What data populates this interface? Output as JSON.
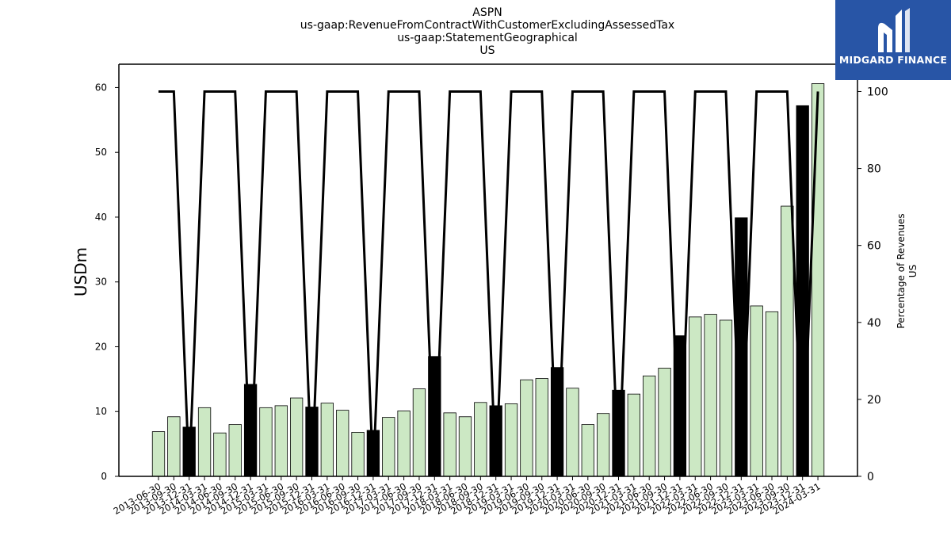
{
  "brand": {
    "name": "MIDGARD FINANCE",
    "color": "#2855a6"
  },
  "chart_data": {
    "type": "bar",
    "title_lines": [
      "ASPN",
      "us-gaap:RevenueFromContractWithCustomerExcludingAssessedTax",
      "us-gaap:StatementGeographical",
      "US"
    ],
    "ylabel": "USDm",
    "ylabel_right": [
      "Percentage of Revenues",
      "US"
    ],
    "ylim": [
      0,
      63.6
    ],
    "ylim_right": [
      0,
      107.1
    ],
    "yticks": [
      0,
      10,
      20,
      30,
      40,
      50,
      60
    ],
    "yticks_right": [
      0,
      20,
      40,
      60,
      80,
      100
    ],
    "categories": [
      "2013-06-30",
      "2013-09-30",
      "2013-12-31",
      "2014-03-31",
      "2014-06-30",
      "2014-09-30",
      "2014-12-31",
      "2015-03-31",
      "2015-06-30",
      "2015-09-30",
      "2015-12-31",
      "2016-03-31",
      "2016-06-30",
      "2016-09-30",
      "2016-12-31",
      "2017-03-31",
      "2017-06-30",
      "2017-09-30",
      "2017-12-31",
      "2018-03-31",
      "2018-06-30",
      "2018-09-30",
      "2018-12-31",
      "2019-03-31",
      "2019-06-30",
      "2019-09-30",
      "2019-12-31",
      "2020-03-31",
      "2020-06-30",
      "2020-09-30",
      "2020-12-31",
      "2021-03-31",
      "2021-06-30",
      "2021-09-30",
      "2021-12-31",
      "2022-03-31",
      "2022-06-30",
      "2022-09-30",
      "2022-12-31",
      "2023-03-31",
      "2023-06-30",
      "2023-09-30",
      "2023-12-31",
      "2024-03-31"
    ],
    "series": [
      {
        "kind": "bar",
        "values": [
          6.9,
          9.2,
          7.6,
          10.6,
          6.7,
          8.0,
          14.2,
          10.6,
          10.9,
          12.1,
          10.7,
          11.3,
          10.2,
          6.8,
          7.1,
          9.1,
          10.1,
          13.5,
          18.5,
          9.8,
          9.2,
          11.4,
          10.9,
          11.2,
          14.9,
          15.1,
          16.8,
          13.6,
          8.0,
          9.7,
          13.3,
          12.7,
          15.5,
          16.7,
          21.7,
          24.6,
          25.0,
          24.1,
          39.9,
          26.3,
          25.4,
          41.7,
          57.2,
          60.6
        ],
        "colors": [
          "#cce8c4",
          "#cce8c4",
          "#000000",
          "#cce8c4",
          "#cce8c4",
          "#cce8c4",
          "#000000",
          "#cce8c4",
          "#cce8c4",
          "#cce8c4",
          "#000000",
          "#cce8c4",
          "#cce8c4",
          "#cce8c4",
          "#000000",
          "#cce8c4",
          "#cce8c4",
          "#cce8c4",
          "#000000",
          "#cce8c4",
          "#cce8c4",
          "#cce8c4",
          "#000000",
          "#cce8c4",
          "#cce8c4",
          "#cce8c4",
          "#000000",
          "#cce8c4",
          "#cce8c4",
          "#cce8c4",
          "#000000",
          "#cce8c4",
          "#cce8c4",
          "#cce8c4",
          "#000000",
          "#cce8c4",
          "#cce8c4",
          "#cce8c4",
          "#000000",
          "#cce8c4",
          "#cce8c4",
          "#cce8c4",
          "#000000",
          "#cce8c4"
        ]
      },
      {
        "kind": "line",
        "axis": "right",
        "color": "#000000",
        "values": [
          100,
          100,
          0,
          100,
          100,
          100,
          0,
          100,
          100,
          100,
          0,
          100,
          100,
          100,
          0,
          100,
          100,
          100,
          0,
          100,
          100,
          100,
          0,
          100,
          100,
          100,
          0,
          100,
          100,
          100,
          0,
          100,
          100,
          100,
          0,
          100,
          100,
          100,
          0,
          100,
          100,
          100,
          0,
          100
        ]
      }
    ]
  }
}
